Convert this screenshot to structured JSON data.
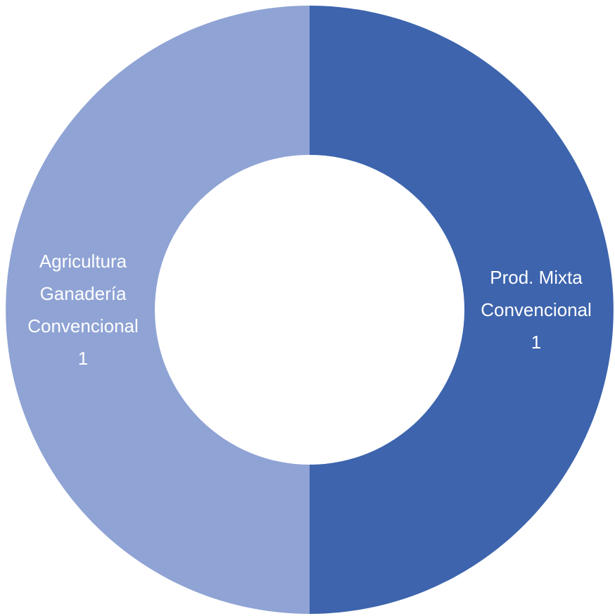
{
  "chart_data": {
    "type": "donut",
    "categories": [
      "Prod. Mixta Convencional",
      "Agricultura Ganadería Convencional"
    ],
    "values": [
      1,
      1
    ],
    "colors": [
      "#3d64ad",
      "#8fa3d4"
    ]
  }
}
